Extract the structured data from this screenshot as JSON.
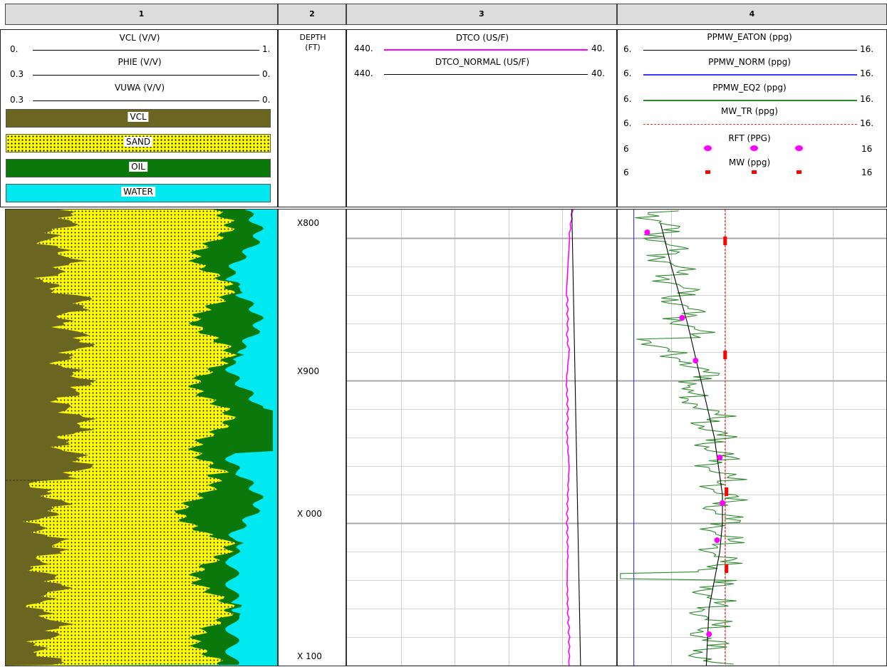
{
  "columns": [
    {
      "number": "1"
    },
    {
      "number": "2"
    },
    {
      "number": "3"
    },
    {
      "number": "4"
    }
  ],
  "track1": {
    "curves": [
      {
        "name": "VCL (V/V)",
        "left": "0.",
        "right": "1."
      },
      {
        "name": "PHIE (V/V)",
        "left": "0.3",
        "right": "0."
      },
      {
        "name": "VUWA (V/V)",
        "left": "0.3",
        "right": "0."
      }
    ],
    "fills": [
      {
        "name": "VCL",
        "color": "#6b6522"
      },
      {
        "name": "SAND",
        "color": "#ffff00"
      },
      {
        "name": "OIL",
        "color": "#0b780b"
      },
      {
        "name": "WATER",
        "color": "#00e8f0"
      }
    ]
  },
  "track2": {
    "title": "DEPTH",
    "unit": "(FT)",
    "depth_labels": [
      "X800",
      "X900",
      "X 000",
      "X 100"
    ]
  },
  "track3": {
    "curves": [
      {
        "name": "DTCO (US/F)",
        "left": "440.",
        "right": "40.",
        "color": "#ff00ff"
      },
      {
        "name": "DTCO_NORMAL (US/F)",
        "left": "440.",
        "right": "40.",
        "color": "#000000"
      }
    ]
  },
  "track4": {
    "curves": [
      {
        "name": "PPMW_EATON (ppg)",
        "left": "6.",
        "right": "16.",
        "color": "#000000"
      },
      {
        "name": "PPMW_NORM (ppg)",
        "left": "6.",
        "right": "16.",
        "color": "#3a3af5"
      },
      {
        "name": "PPMW_EQ2 (ppg)",
        "left": "6.",
        "right": "16.",
        "color": "#2e8b2e"
      },
      {
        "name": "MW_TR (ppg)",
        "left": "6.",
        "right": "16.",
        "color": "#ff2a2a"
      },
      {
        "name": "RFT (PPG)",
        "left": "6",
        "right": "16",
        "color": "#ff00ff"
      },
      {
        "name": "MW (ppg)",
        "left": "6",
        "right": "16",
        "color": "#ff0000"
      }
    ]
  },
  "chart_data": {
    "type": "line",
    "title": "",
    "depth_unit": "FT",
    "depth_range": [
      780,
      1100
    ],
    "series": [
      {
        "name": "DTCO (US/F)",
        "scale": [
          440,
          40
        ],
        "x": [
          780,
          800,
          840,
          860,
          870,
          880,
          900,
          920,
          940,
          960,
          980,
          1000,
          1020,
          1040,
          1060,
          1080,
          1100
        ],
        "values": [
          105,
          110,
          113,
          112,
          113,
          110,
          114,
          112,
          113,
          110,
          112,
          113,
          112,
          113,
          112,
          110,
          110
        ]
      },
      {
        "name": "DTCO_NORMAL (US/F)",
        "scale": [
          440,
          40
        ],
        "x": [
          780,
          1100
        ],
        "values": [
          106,
          93
        ]
      },
      {
        "name": "PPMW_EATON (ppg)",
        "scale": [
          6,
          16
        ],
        "x": [
          790,
          820,
          860,
          900,
          940,
          980,
          1000,
          1020,
          1060,
          1100
        ],
        "values": [
          7.6,
          8.0,
          8.6,
          9.1,
          9.6,
          9.9,
          9.9,
          9.8,
          9.4,
          9.3
        ]
      },
      {
        "name": "PPMW_NORM (ppg)",
        "scale": [
          6,
          16
        ],
        "x": [
          780,
          1100
        ],
        "values": [
          6.6,
          6.6
        ]
      },
      {
        "name": "MW_TR (ppg)",
        "scale": [
          6,
          16
        ],
        "x": [
          780,
          1100
        ],
        "values": [
          10.0,
          10.0
        ]
      }
    ],
    "points": [
      {
        "name": "RFT (PPG)",
        "depth": [
          796,
          856,
          886,
          954,
          986,
          1012,
          1078
        ],
        "values": [
          7.1,
          8.4,
          8.9,
          9.8,
          9.9,
          9.7,
          9.4
        ]
      },
      {
        "name": "MW (ppg)",
        "depth": [
          802,
          882,
          978,
          1032
        ],
        "values": [
          10.0,
          10.0,
          10.05,
          10.05
        ]
      }
    ]
  }
}
